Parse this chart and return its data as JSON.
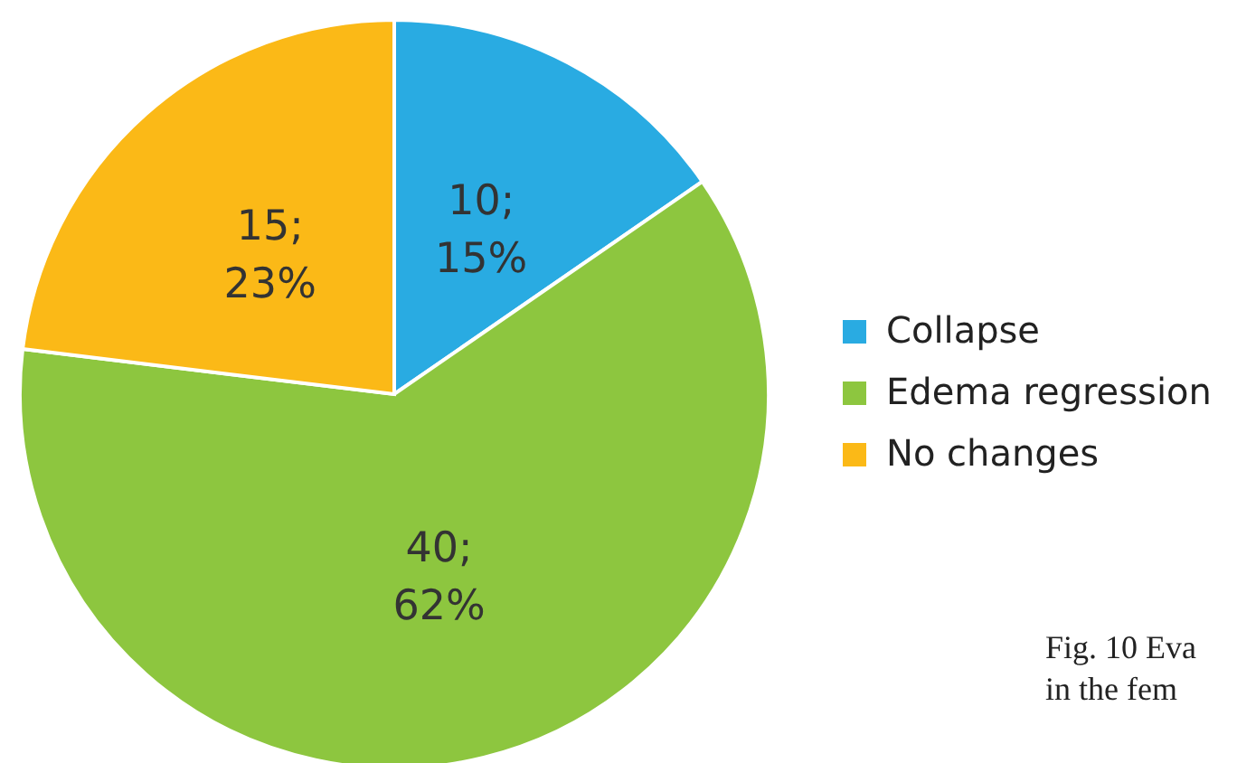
{
  "chart_data": {
    "type": "pie",
    "categories": [
      "Collapse",
      "Edema regression",
      "No changes"
    ],
    "values": [
      10,
      40,
      15
    ],
    "colors": [
      "#29abe2",
      "#8dc63f",
      "#fbb917"
    ],
    "value_labels": [
      "10;\n15%",
      "40;\n62%",
      "15;\n23%"
    ],
    "legend": "right",
    "annotations": [
      "Fig. 10 Eva",
      "in the fem"
    ]
  }
}
